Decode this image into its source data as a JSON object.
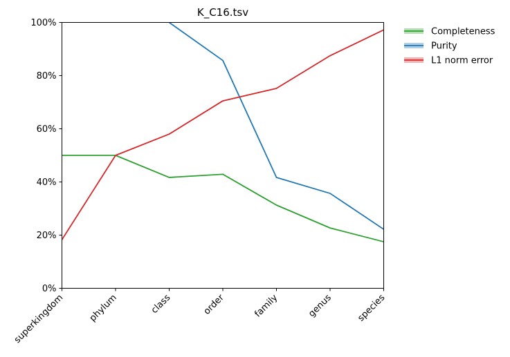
{
  "chart_data": {
    "type": "line",
    "title": "K_C16.tsv",
    "xlabel": "",
    "ylabel": "",
    "ylim": [
      0,
      1
    ],
    "y_ticks": [
      0,
      0.2,
      0.4,
      0.6,
      0.8,
      1.0
    ],
    "y_tick_labels": [
      "0%",
      "20%",
      "40%",
      "60%",
      "80%",
      "100%"
    ],
    "y_format": "percent",
    "grid": false,
    "legend_position": "outside-top-right",
    "categories": [
      "superkingdom",
      "phylum",
      "class",
      "order",
      "family",
      "genus",
      "species"
    ],
    "series": [
      {
        "name": "Completeness",
        "color": "#2ca02c",
        "values": [
          0.5,
          0.5,
          0.417,
          0.429,
          0.313,
          0.227,
          0.175
        ]
      },
      {
        "name": "Purity",
        "color": "#1f77b4",
        "values": [
          null,
          null,
          1.0,
          0.857,
          0.417,
          0.357,
          0.222
        ]
      },
      {
        "name": "L1 norm error",
        "color": "#d62728",
        "values": [
          0.183,
          0.5,
          0.58,
          0.705,
          0.752,
          0.875,
          0.972
        ]
      }
    ]
  }
}
